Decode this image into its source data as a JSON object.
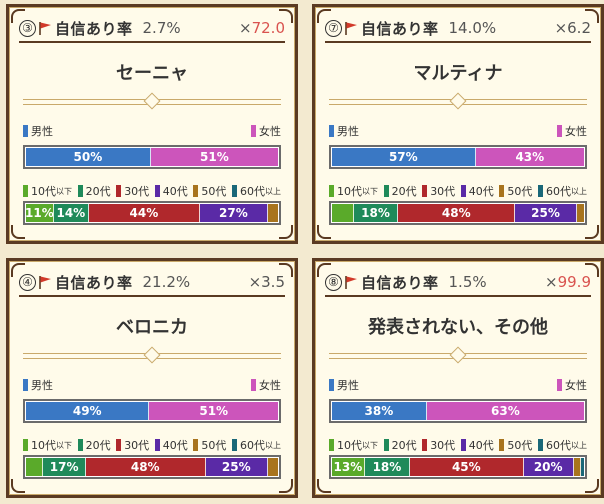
{
  "labels": {
    "confidence": "自信あり率",
    "male": "男性",
    "female": "女性"
  },
  "age_labels": [
    {
      "main": "10代",
      "sub": "以下"
    },
    {
      "main": "20代",
      "sub": ""
    },
    {
      "main": "30代",
      "sub": ""
    },
    {
      "main": "40代",
      "sub": ""
    },
    {
      "main": "50代",
      "sub": ""
    },
    {
      "main": "60代",
      "sub": "以上"
    }
  ],
  "colors": {
    "male": "#3a78c4",
    "female": "#cc55bb",
    "age": [
      "#5aaa2a",
      "#1f8a5a",
      "#b0282c",
      "#5a2aa6",
      "#a8741e",
      "#1a6878"
    ],
    "odds_high": "#d9534f",
    "odds_normal": "#555555"
  },
  "cards": [
    {
      "rank": "③",
      "rate": "2.7%",
      "odds_prefix": "×",
      "odds_value": "72.0",
      "odds_highlight": true,
      "name": "セーニャ",
      "male": {
        "value": 50,
        "label": "50%"
      },
      "female": {
        "value": 51,
        "label": "51%"
      },
      "ages": [
        {
          "value": 11,
          "label": "11%"
        },
        {
          "value": 14,
          "label": "14%"
        },
        {
          "value": 44,
          "label": "44%"
        },
        {
          "value": 27,
          "label": "27%"
        },
        {
          "value": 4,
          "label": ""
        },
        {
          "value": 0,
          "label": ""
        }
      ]
    },
    {
      "rank": "⑦",
      "rate": "14.0%",
      "odds_prefix": "×",
      "odds_value": "6.2",
      "odds_highlight": false,
      "name": "マルティナ",
      "male": {
        "value": 57,
        "label": "57%"
      },
      "female": {
        "value": 43,
        "label": "43%"
      },
      "ages": [
        {
          "value": 9,
          "label": ""
        },
        {
          "value": 18,
          "label": "18%"
        },
        {
          "value": 48,
          "label": "48%"
        },
        {
          "value": 25,
          "label": "25%"
        },
        {
          "value": 3,
          "label": ""
        },
        {
          "value": 0,
          "label": ""
        }
      ]
    },
    {
      "rank": "④",
      "rate": "21.2%",
      "odds_prefix": "×",
      "odds_value": "3.5",
      "odds_highlight": false,
      "name": "ベロニカ",
      "male": {
        "value": 49,
        "label": "49%"
      },
      "female": {
        "value": 51,
        "label": "51%"
      },
      "ages": [
        {
          "value": 7,
          "label": ""
        },
        {
          "value": 17,
          "label": "17%"
        },
        {
          "value": 48,
          "label": "48%"
        },
        {
          "value": 25,
          "label": "25%"
        },
        {
          "value": 4,
          "label": ""
        },
        {
          "value": 0,
          "label": ""
        }
      ]
    },
    {
      "rank": "⑧",
      "rate": "1.5%",
      "odds_prefix": "×",
      "odds_value": "99.9",
      "odds_highlight": true,
      "name": "発表されない、その他",
      "male": {
        "value": 38,
        "label": "38%"
      },
      "female": {
        "value": 63,
        "label": "63%"
      },
      "ages": [
        {
          "value": 13,
          "label": "13%"
        },
        {
          "value": 18,
          "label": "18%"
        },
        {
          "value": 45,
          "label": "45%"
        },
        {
          "value": 20,
          "label": "20%"
        },
        {
          "value": 3,
          "label": ""
        },
        {
          "value": 1,
          "label": ""
        }
      ]
    }
  ]
}
